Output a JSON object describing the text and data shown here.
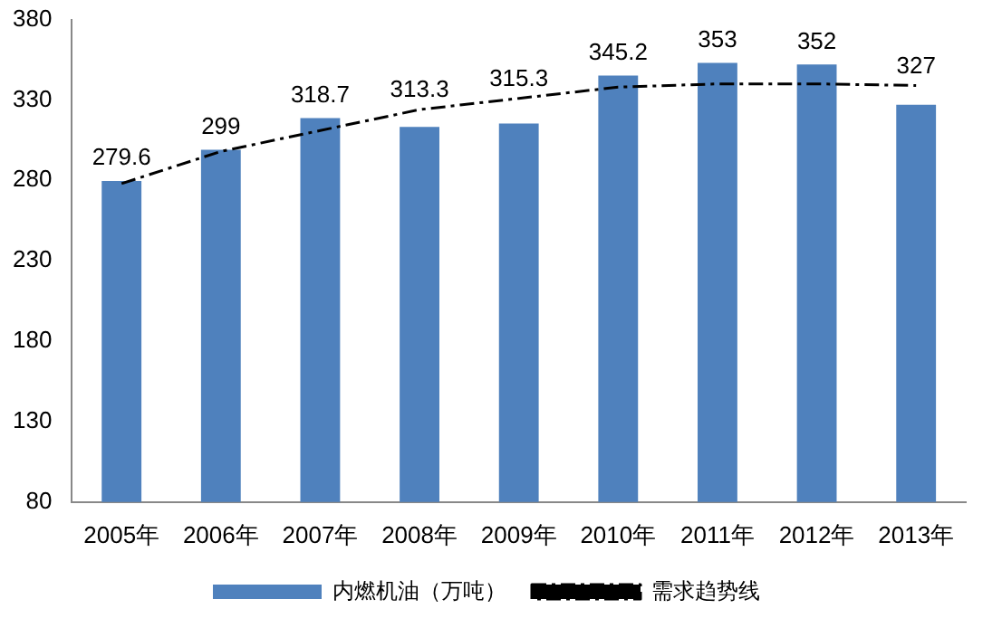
{
  "chart_data": {
    "type": "bar",
    "categories": [
      "2005年",
      "2006年",
      "2007年",
      "2008年",
      "2009年",
      "2010年",
      "2011年",
      "2012年",
      "2013年"
    ],
    "series": [
      {
        "name": "内燃机油（万吨）",
        "color": "#4f81bd",
        "values": [
          279.6,
          299,
          318.7,
          313.3,
          315.3,
          345.2,
          353,
          352,
          327
        ],
        "value_labels": [
          "279.6",
          "299",
          "318.7",
          "313.3",
          "315.3",
          "345.2",
          "353",
          "352",
          "327"
        ]
      },
      {
        "name": "需求趋势线",
        "type": "line",
        "color": "#000000",
        "line_style": "dashed",
        "marker": "none",
        "values": [
          278,
          298,
          311,
          324,
          331,
          338,
          340,
          340,
          339
        ]
      }
    ],
    "ylim": [
      80,
      380
    ],
    "yticks": [
      80,
      130,
      180,
      230,
      280,
      330,
      380
    ],
    "grid": false,
    "legend": "bottom"
  }
}
